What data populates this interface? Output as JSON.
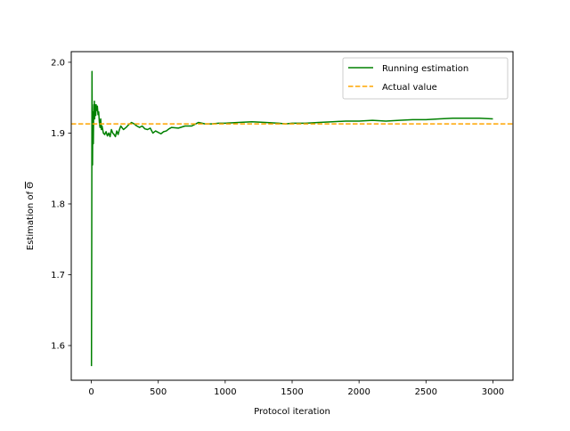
{
  "chart_data": {
    "type": "line",
    "xlabel": "Protocol iteration",
    "ylabel_prefix": "Estimation of ",
    "ylabel_symbol": "Θ",
    "xlim": [
      -150,
      3150
    ],
    "ylim": [
      1.551,
      2.015
    ],
    "x_ticks": [
      0,
      500,
      1000,
      1500,
      2000,
      2500,
      3000
    ],
    "x_tick_labels": [
      "0",
      "500",
      "1000",
      "1500",
      "2000",
      "2500",
      "3000"
    ],
    "y_ticks": [
      1.6,
      1.7,
      1.8,
      1.9,
      2.0
    ],
    "y_tick_labels": [
      "1.6",
      "1.7",
      "1.8",
      "1.9",
      "2.0"
    ],
    "grid": false,
    "legend_position": "upper right",
    "series": [
      {
        "name": "Running estimation",
        "color": "#008000",
        "style": "solid",
        "x": [
          1,
          3,
          5,
          7,
          9,
          11,
          13,
          15,
          17,
          19,
          21,
          23,
          25,
          27,
          30,
          33,
          36,
          40,
          45,
          50,
          55,
          60,
          65,
          70,
          75,
          80,
          90,
          100,
          110,
          120,
          130,
          140,
          150,
          160,
          170,
          180,
          190,
          200,
          210,
          220,
          240,
          260,
          280,
          300,
          320,
          340,
          360,
          380,
          400,
          420,
          440,
          460,
          480,
          500,
          520,
          540,
          560,
          580,
          600,
          650,
          700,
          750,
          800,
          850,
          900,
          950,
          1000,
          1100,
          1200,
          1300,
          1400,
          1450,
          1500,
          1600,
          1700,
          1800,
          1900,
          2000,
          2100,
          2200,
          2300,
          2400,
          2500,
          2600,
          2700,
          2800,
          2900,
          3000
        ],
        "y": [
          1.571,
          1.75,
          1.987,
          1.88,
          1.855,
          1.93,
          1.91,
          1.885,
          1.92,
          1.94,
          1.93,
          1.945,
          1.92,
          1.94,
          1.935,
          1.925,
          1.94,
          1.932,
          1.938,
          1.926,
          1.93,
          1.915,
          1.908,
          1.92,
          1.905,
          1.91,
          1.9,
          1.898,
          1.902,
          1.896,
          1.9,
          1.895,
          1.905,
          1.9,
          1.898,
          1.895,
          1.903,
          1.898,
          1.905,
          1.91,
          1.905,
          1.908,
          1.912,
          1.915,
          1.913,
          1.91,
          1.908,
          1.91,
          1.906,
          1.905,
          1.907,
          1.9,
          1.903,
          1.901,
          1.899,
          1.902,
          1.903,
          1.906,
          1.908,
          1.907,
          1.91,
          1.91,
          1.915,
          1.913,
          1.913,
          1.914,
          1.914,
          1.915,
          1.916,
          1.915,
          1.914,
          1.913,
          1.914,
          1.914,
          1.915,
          1.916,
          1.917,
          1.917,
          1.918,
          1.917,
          1.918,
          1.919,
          1.919,
          1.92,
          1.921,
          1.921,
          1.921,
          1.92
        ]
      },
      {
        "name": "Actual value",
        "color": "#FFA500",
        "style": "dashed",
        "constant_y": 1.913
      }
    ]
  }
}
